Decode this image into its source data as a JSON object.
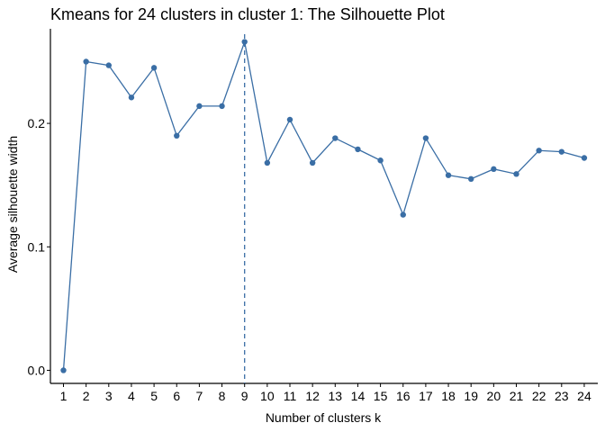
{
  "chart_data": {
    "type": "line",
    "title": "Kmeans for 24 clusters in cluster 1: The Silhouette Plot",
    "xlabel": "Number of clusters k",
    "ylabel": "Average silhouette width",
    "x": [
      "1",
      "2",
      "3",
      "4",
      "5",
      "6",
      "7",
      "8",
      "9",
      "10",
      "11",
      "12",
      "13",
      "14",
      "15",
      "16",
      "17",
      "18",
      "19",
      "20",
      "21",
      "22",
      "23",
      "24"
    ],
    "series": [
      {
        "values": [
          0.0,
          0.25,
          0.247,
          0.221,
          0.245,
          0.19,
          0.214,
          0.214,
          0.266,
          0.168,
          0.203,
          0.168,
          0.188,
          0.179,
          0.17,
          0.126,
          0.188,
          0.158,
          0.155,
          0.163,
          0.159,
          0.178,
          0.177,
          0.172
        ],
        "color": "#3a6ea5"
      }
    ],
    "ylim": [
      -0.0106,
      0.2766
    ],
    "yticks": [
      0.0,
      0.1,
      0.2
    ],
    "ytick_labels": [
      "0.0",
      "0.1",
      "0.2"
    ],
    "vline": {
      "x": "9",
      "style": "dashed",
      "color": "#3a6ea5"
    },
    "grid": false,
    "legend": "none"
  }
}
